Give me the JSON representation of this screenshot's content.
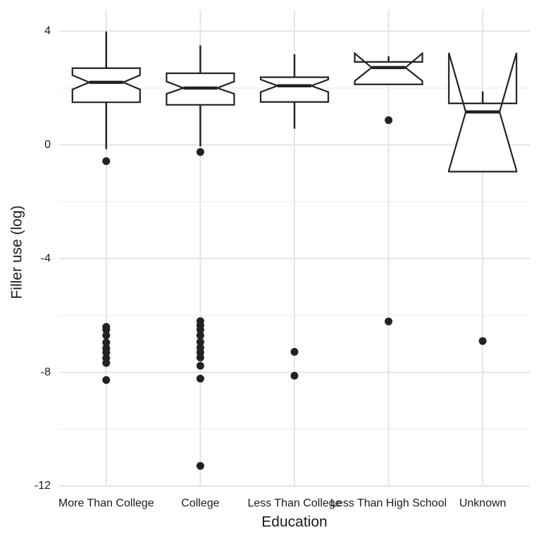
{
  "chart_data": {
    "type": "boxplot",
    "x_label": "Education",
    "y_label": "Filler use (log)",
    "categories": [
      "More Than College",
      "College",
      "Less Than College",
      "Less Than High School",
      "Unknown"
    ],
    "boxes": [
      {
        "whisker_low": -0.15,
        "q1": 1.5,
        "median": 2.2,
        "q3": 2.7,
        "whisker_high": 3.99,
        "notch_low": 1.95,
        "notch_high": 2.45,
        "outliers": [
          -0.57,
          -6.4,
          -6.5,
          -6.7,
          -6.95,
          -7.15,
          -7.3,
          -7.5,
          -7.67,
          -8.27
        ]
      },
      {
        "whisker_low": -0.05,
        "q1": 1.41,
        "median": 2.0,
        "q3": 2.52,
        "whisker_high": 3.5,
        "notch_low": 1.8,
        "notch_high": 2.23,
        "outliers": [
          -0.25,
          -6.2,
          -6.35,
          -6.5,
          -6.7,
          -6.93,
          -7.13,
          -7.3,
          -7.48,
          -7.77,
          -8.22,
          -11.29
        ]
      },
      {
        "whisker_low": 0.57,
        "q1": 1.51,
        "median": 2.08,
        "q3": 2.38,
        "whisker_high": 3.19,
        "notch_low": 1.86,
        "notch_high": 2.3,
        "outliers": [
          -7.28,
          -8.12
        ]
      },
      {
        "whisker_low": 2.13,
        "q1": 2.13,
        "median": 2.72,
        "q3": 2.92,
        "whisker_high": 3.12,
        "notch_low": 2.25,
        "notch_high": 3.22,
        "outliers": [
          0.87,
          -6.21
        ]
      },
      {
        "whisker_low": -0.94,
        "q1": -0.94,
        "median": 1.16,
        "q3": 1.46,
        "whisker_high": 1.88,
        "notch_low": -0.9,
        "notch_high": 3.24,
        "outliers": [
          -6.9
        ]
      }
    ],
    "color": "#222222",
    "ylim": [
      -12,
      4.75
    ],
    "yticks": [
      -12,
      -8,
      -4,
      0,
      4
    ],
    "minor_yticks": [
      -10,
      -6,
      -2,
      2
    ],
    "grid": true
  }
}
